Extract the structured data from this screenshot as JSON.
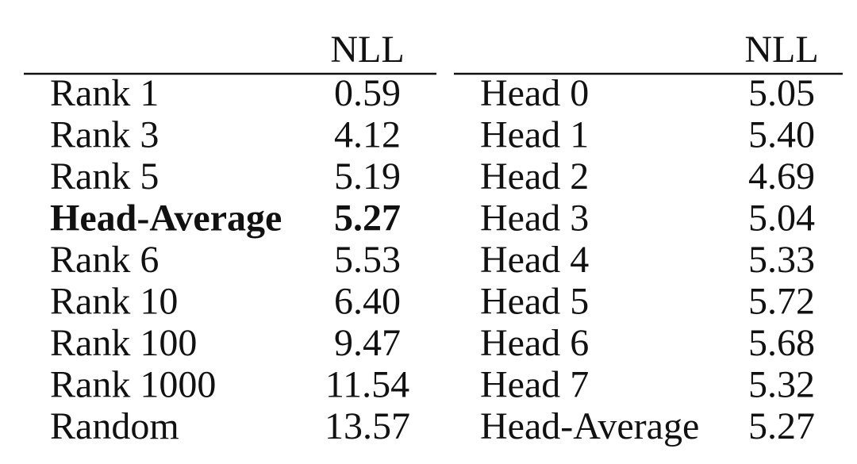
{
  "tables": [
    {
      "header": "NLL",
      "rows": [
        [
          "Rank 1",
          "0.59"
        ],
        [
          "Rank 3",
          "4.12"
        ],
        [
          "Rank 5",
          "5.19"
        ],
        [
          "Head-Average",
          "5.27"
        ],
        [
          "Rank 6",
          "5.53"
        ],
        [
          "Rank 10",
          "6.40"
        ],
        [
          "Rank 100",
          "9.47"
        ],
        [
          "Rank 1000",
          "11.54"
        ],
        [
          "Random",
          "13.57"
        ]
      ]
    },
    {
      "header": "NLL",
      "rows": [
        [
          "Head 0",
          "5.05"
        ],
        [
          "Head 1",
          "5.40"
        ],
        [
          "Head 2",
          "4.69"
        ],
        [
          "Head 3",
          "5.04"
        ],
        [
          "Head 4",
          "5.33"
        ],
        [
          "Head 5",
          "5.72"
        ],
        [
          "Head 6",
          "5.68"
        ],
        [
          "Head 7",
          "5.32"
        ],
        [
          "Head-Average",
          "5.27"
        ]
      ]
    }
  ]
}
